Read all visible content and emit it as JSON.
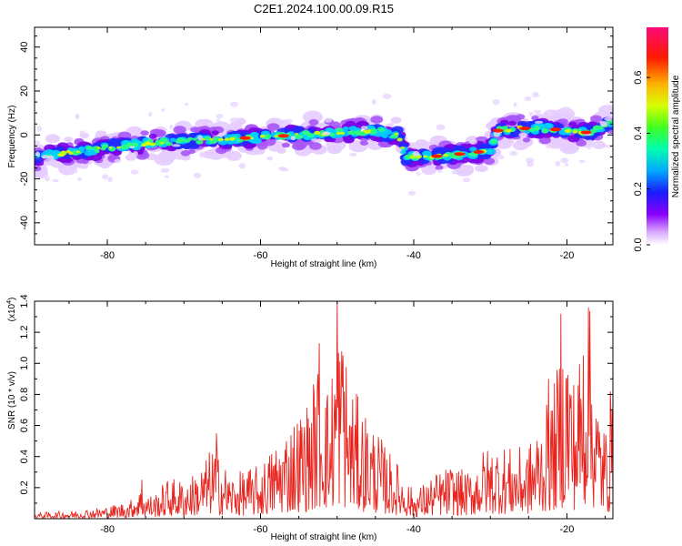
{
  "title": "C2E1.2024.100.00.09.R15",
  "chart_data": [
    {
      "type": "heatmap",
      "xlabel": "Height of straight line (km)",
      "ylabel": "Frequency (Hz)",
      "xlim": [
        -89.5,
        -14
      ],
      "ylim": [
        -50,
        49
      ],
      "x_ticks": [
        -80,
        -60,
        -40,
        -20
      ],
      "x_tick_labels": [
        "-80",
        "-60",
        "-40",
        "-20"
      ],
      "y_ticks": [
        -40,
        -20,
        0,
        20,
        40
      ],
      "y_tick_labels": [
        "-40",
        "-20",
        "0",
        "20",
        "40"
      ],
      "ridge": {
        "x": [
          -89,
          -85,
          -80,
          -75,
          -70,
          -65,
          -60,
          -55,
          -50,
          -45,
          -42,
          -41,
          -38,
          -35,
          -32,
          -30,
          -29,
          -26,
          -23,
          -20,
          -17,
          -14
        ],
        "y": [
          -10,
          -8,
          -6,
          -4,
          -3,
          -2,
          -1,
          0,
          1,
          2,
          0,
          -10,
          -10,
          -9,
          -8,
          -7,
          2,
          3,
          3,
          2,
          1,
          6
        ]
      },
      "colorbar": {
        "label": "Normalized spectral amplitude",
        "range": [
          0,
          0.78
        ],
        "ticks": [
          0.0,
          0.2,
          0.4,
          0.6
        ],
        "tick_labels": [
          "0.0",
          "0.2",
          "0.4",
          "0.6"
        ]
      }
    },
    {
      "type": "line",
      "xlabel": "Height of straight line (km)",
      "ylabel": "SNR (10 * v/v)",
      "multiplier": "(x10",
      "multiplier_exp": "4",
      "multiplier_close": ")",
      "xlim": [
        -89.5,
        -14
      ],
      "ylim": [
        0,
        1.4
      ],
      "x_ticks": [
        -80,
        -60,
        -40,
        -20
      ],
      "x_tick_labels": [
        "-80",
        "-60",
        "-40",
        "-20"
      ],
      "y_ticks": [
        0.2,
        0.4,
        0.6,
        0.8,
        1.0,
        1.2,
        1.4
      ],
      "y_tick_labels": [
        "0.2",
        "0.4",
        "0.6",
        "0.8",
        "1.0",
        "1.2",
        "1.4"
      ],
      "series_color": "#e8251f",
      "envelope": {
        "x": [
          -89.5,
          -85,
          -80,
          -77,
          -76,
          -74,
          -72,
          -70,
          -68,
          -66,
          -64,
          -62,
          -60,
          -58,
          -56,
          -54,
          -52,
          -51,
          -50,
          -48,
          -46,
          -44,
          -42,
          -40,
          -37,
          -35,
          -33,
          -31,
          -29,
          -27,
          -25,
          -23,
          -22,
          -21,
          -20,
          -19,
          -18,
          -17,
          -16,
          -15,
          -14
        ],
        "y": [
          0.04,
          0.05,
          0.08,
          0.12,
          0.2,
          0.15,
          0.27,
          0.25,
          0.32,
          0.5,
          0.28,
          0.32,
          0.35,
          0.5,
          0.65,
          0.75,
          1.1,
          0.8,
          1.4,
          0.85,
          0.68,
          0.5,
          0.35,
          0.18,
          0.3,
          0.35,
          0.3,
          0.45,
          0.5,
          0.45,
          0.48,
          0.7,
          0.8,
          1.05,
          1.32,
          0.9,
          1.2,
          1.36,
          0.8,
          0.6,
          0.75
        ]
      },
      "peaks": [
        {
          "x": -50.0,
          "y": 1.4
        },
        {
          "x": -52.3,
          "y": 1.13
        },
        {
          "x": -49.2,
          "y": 1.05
        },
        {
          "x": -20.8,
          "y": 1.32
        },
        {
          "x": -17.2,
          "y": 1.36
        },
        {
          "x": -17.9,
          "y": 1.05
        },
        {
          "x": -22.4,
          "y": 0.9
        },
        {
          "x": -65.8,
          "y": 0.55
        },
        {
          "x": -75.5,
          "y": 0.25
        },
        {
          "x": -14.3,
          "y": 0.82
        }
      ]
    }
  ]
}
